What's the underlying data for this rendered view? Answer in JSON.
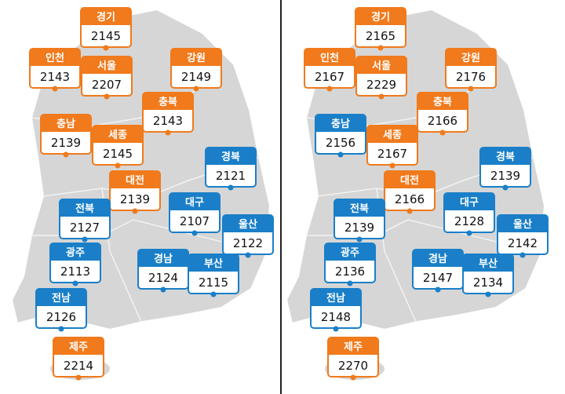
{
  "panels": [
    {
      "regions": [
        {
          "name": "경기",
          "value": 2145,
          "color": "#f07a1c"
        },
        {
          "name": "인천",
          "value": 2143,
          "color": "#f07a1c"
        },
        {
          "name": "서울",
          "value": 2207,
          "color": "#f07a1c"
        },
        {
          "name": "강원",
          "value": 2149,
          "color": "#f07a1c"
        },
        {
          "name": "충북",
          "value": 2143,
          "color": "#f07a1c"
        },
        {
          "name": "충남",
          "value": 2139,
          "color": "#f07a1c"
        },
        {
          "name": "세종",
          "value": 2145,
          "color": "#f07a1c"
        },
        {
          "name": "경북",
          "value": 2121,
          "color": "#1a7fc8"
        },
        {
          "name": "대전",
          "value": 2139,
          "color": "#f07a1c"
        },
        {
          "name": "대구",
          "value": 2107,
          "color": "#1a7fc8"
        },
        {
          "name": "전북",
          "value": 2127,
          "color": "#1a7fc8"
        },
        {
          "name": "울산",
          "value": 2122,
          "color": "#1a7fc8"
        },
        {
          "name": "광주",
          "value": 2113,
          "color": "#1a7fc8"
        },
        {
          "name": "경남",
          "value": 2124,
          "color": "#1a7fc8"
        },
        {
          "name": "부산",
          "value": 2115,
          "color": "#1a7fc8"
        },
        {
          "name": "전남",
          "value": 2126,
          "color": "#1a7fc8"
        },
        {
          "name": "제주",
          "value": 2214,
          "color": "#f07a1c"
        }
      ]
    },
    {
      "regions": [
        {
          "name": "경기",
          "value": 2165,
          "color": "#f07a1c"
        },
        {
          "name": "인천",
          "value": 2167,
          "color": "#f07a1c"
        },
        {
          "name": "서울",
          "value": 2229,
          "color": "#f07a1c"
        },
        {
          "name": "강원",
          "value": 2176,
          "color": "#f07a1c"
        },
        {
          "name": "충북",
          "value": 2166,
          "color": "#f07a1c"
        },
        {
          "name": "충남",
          "value": 2156,
          "color": "#1a7fc8"
        },
        {
          "name": "세종",
          "value": 2167,
          "color": "#f07a1c"
        },
        {
          "name": "경북",
          "value": 2139,
          "color": "#1a7fc8"
        },
        {
          "name": "대전",
          "value": 2166,
          "color": "#f07a1c"
        },
        {
          "name": "대구",
          "value": 2128,
          "color": "#1a7fc8"
        },
        {
          "name": "전북",
          "value": 2139,
          "color": "#1a7fc8"
        },
        {
          "name": "울산",
          "value": 2142,
          "color": "#1a7fc8"
        },
        {
          "name": "광주",
          "value": 2136,
          "color": "#1a7fc8"
        },
        {
          "name": "경남",
          "value": 2147,
          "color": "#1a7fc8"
        },
        {
          "name": "부산",
          "value": 2134,
          "color": "#1a7fc8"
        },
        {
          "name": "전남",
          "value": 2148,
          "color": "#1a7fc8"
        },
        {
          "name": "제주",
          "value": 2270,
          "color": "#f07a1c"
        }
      ]
    }
  ]
}
